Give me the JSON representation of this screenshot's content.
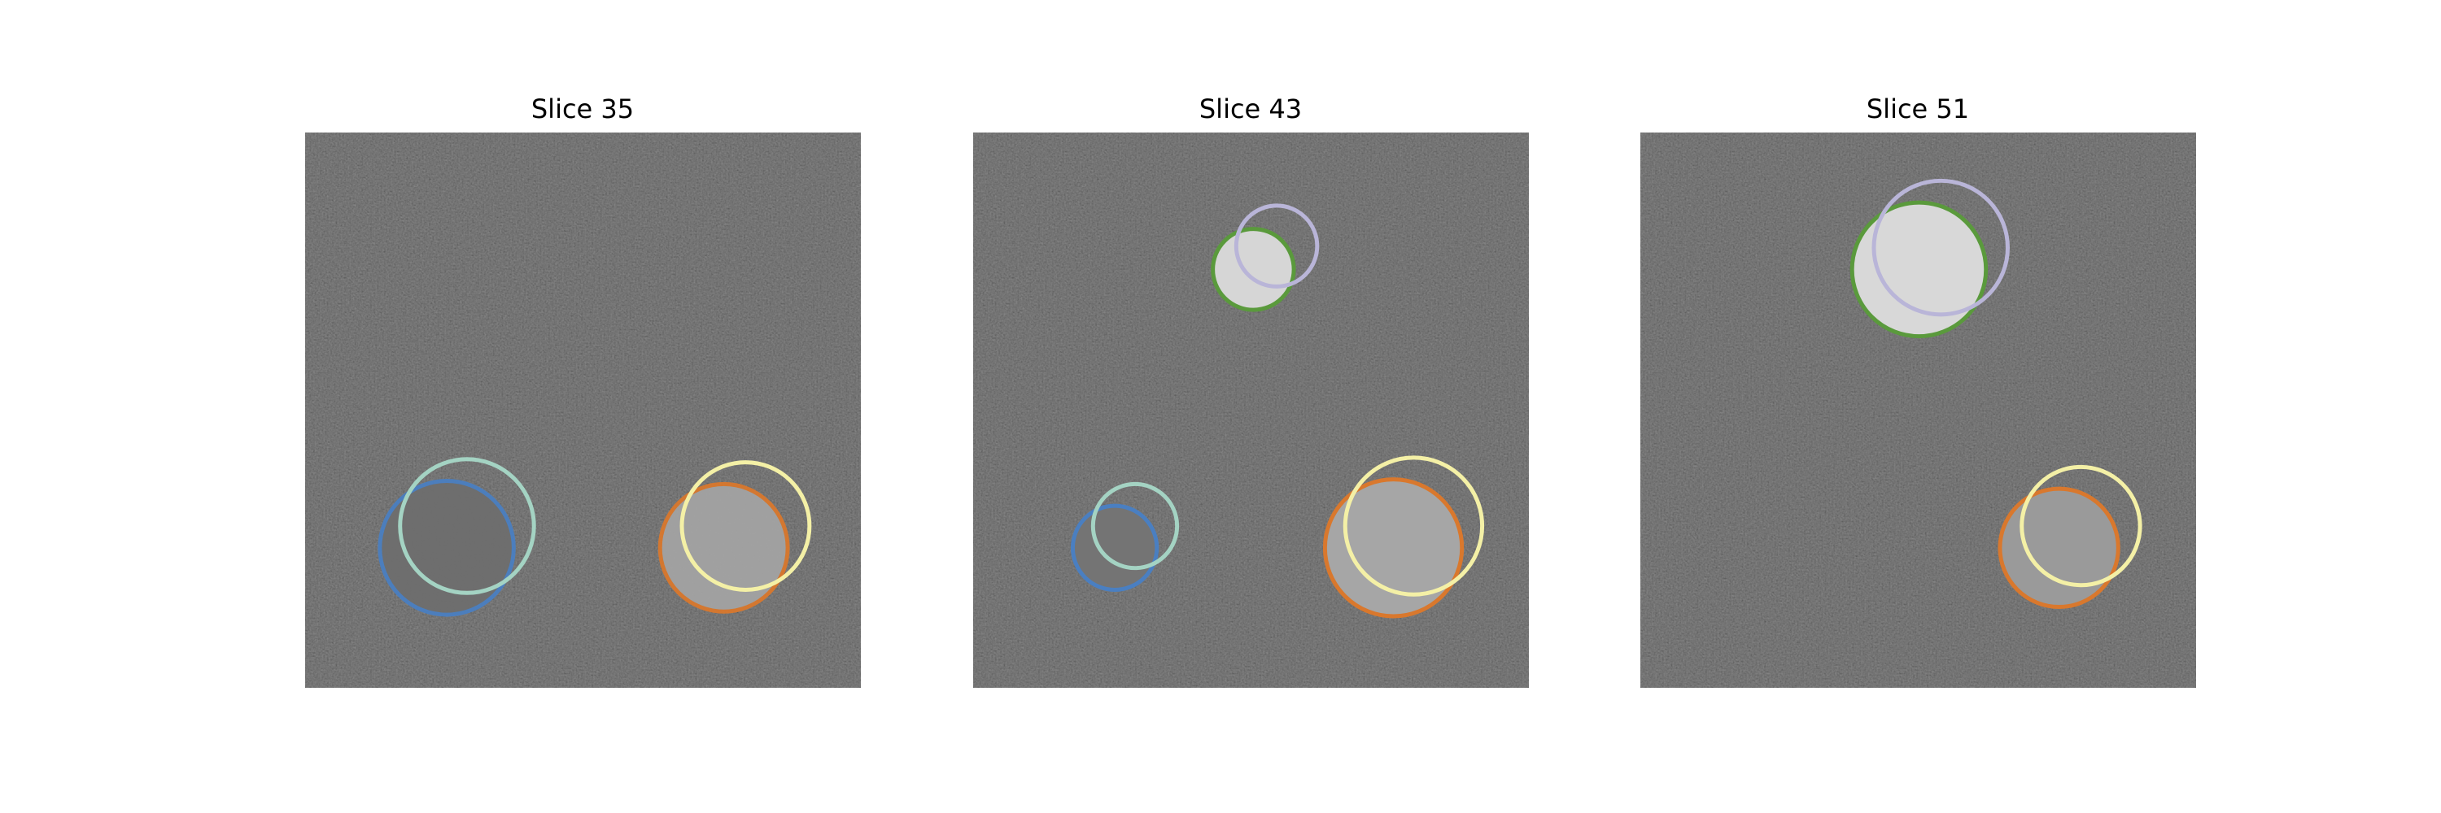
{
  "panels": [
    {
      "title": "Slice 35"
    },
    {
      "title": "Slice 43"
    },
    {
      "title": "Slice 51"
    }
  ]
}
